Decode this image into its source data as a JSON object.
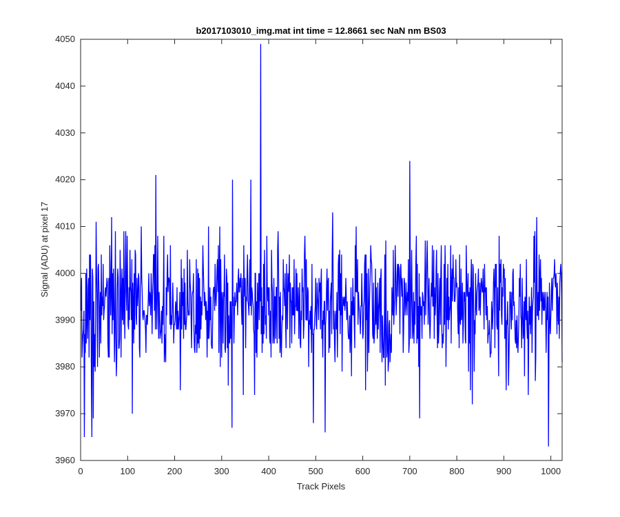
{
  "chart_data": {
    "type": "line",
    "title": "b2017103010_img.mat int time = 12.8661 sec  NaN nm BS03",
    "xlabel": "Track Pixels",
    "ylabel": "Signal (ADU) at pixel 17",
    "xlim": [
      0,
      1024
    ],
    "ylim": [
      3960,
      4050
    ],
    "xticks": [
      0,
      100,
      200,
      300,
      400,
      500,
      600,
      700,
      800,
      900,
      1000
    ],
    "yticks": [
      3960,
      3970,
      3980,
      3990,
      4000,
      4010,
      4020,
      4030,
      4040,
      4050
    ],
    "grid": false,
    "legend": "none",
    "series": [
      {
        "color": "#0000ff",
        "x_start": 1,
        "x_step": 1,
        "mean": 3993,
        "sd": 7,
        "point_count": 1024,
        "notable_points": [
          {
            "x": 383,
            "y": 4049
          },
          {
            "x": 700,
            "y": 4024
          },
          {
            "x": 160,
            "y": 4021
          },
          {
            "x": 323,
            "y": 4020
          },
          {
            "x": 362,
            "y": 4020
          },
          {
            "x": 995,
            "y": 3963
          },
          {
            "x": 520,
            "y": 3966
          },
          {
            "x": 24,
            "y": 3965
          },
          {
            "x": 8,
            "y": 3965
          },
          {
            "x": 322,
            "y": 3967
          },
          {
            "x": 27,
            "y": 3969
          },
          {
            "x": 110,
            "y": 3970
          }
        ]
      }
    ]
  }
}
